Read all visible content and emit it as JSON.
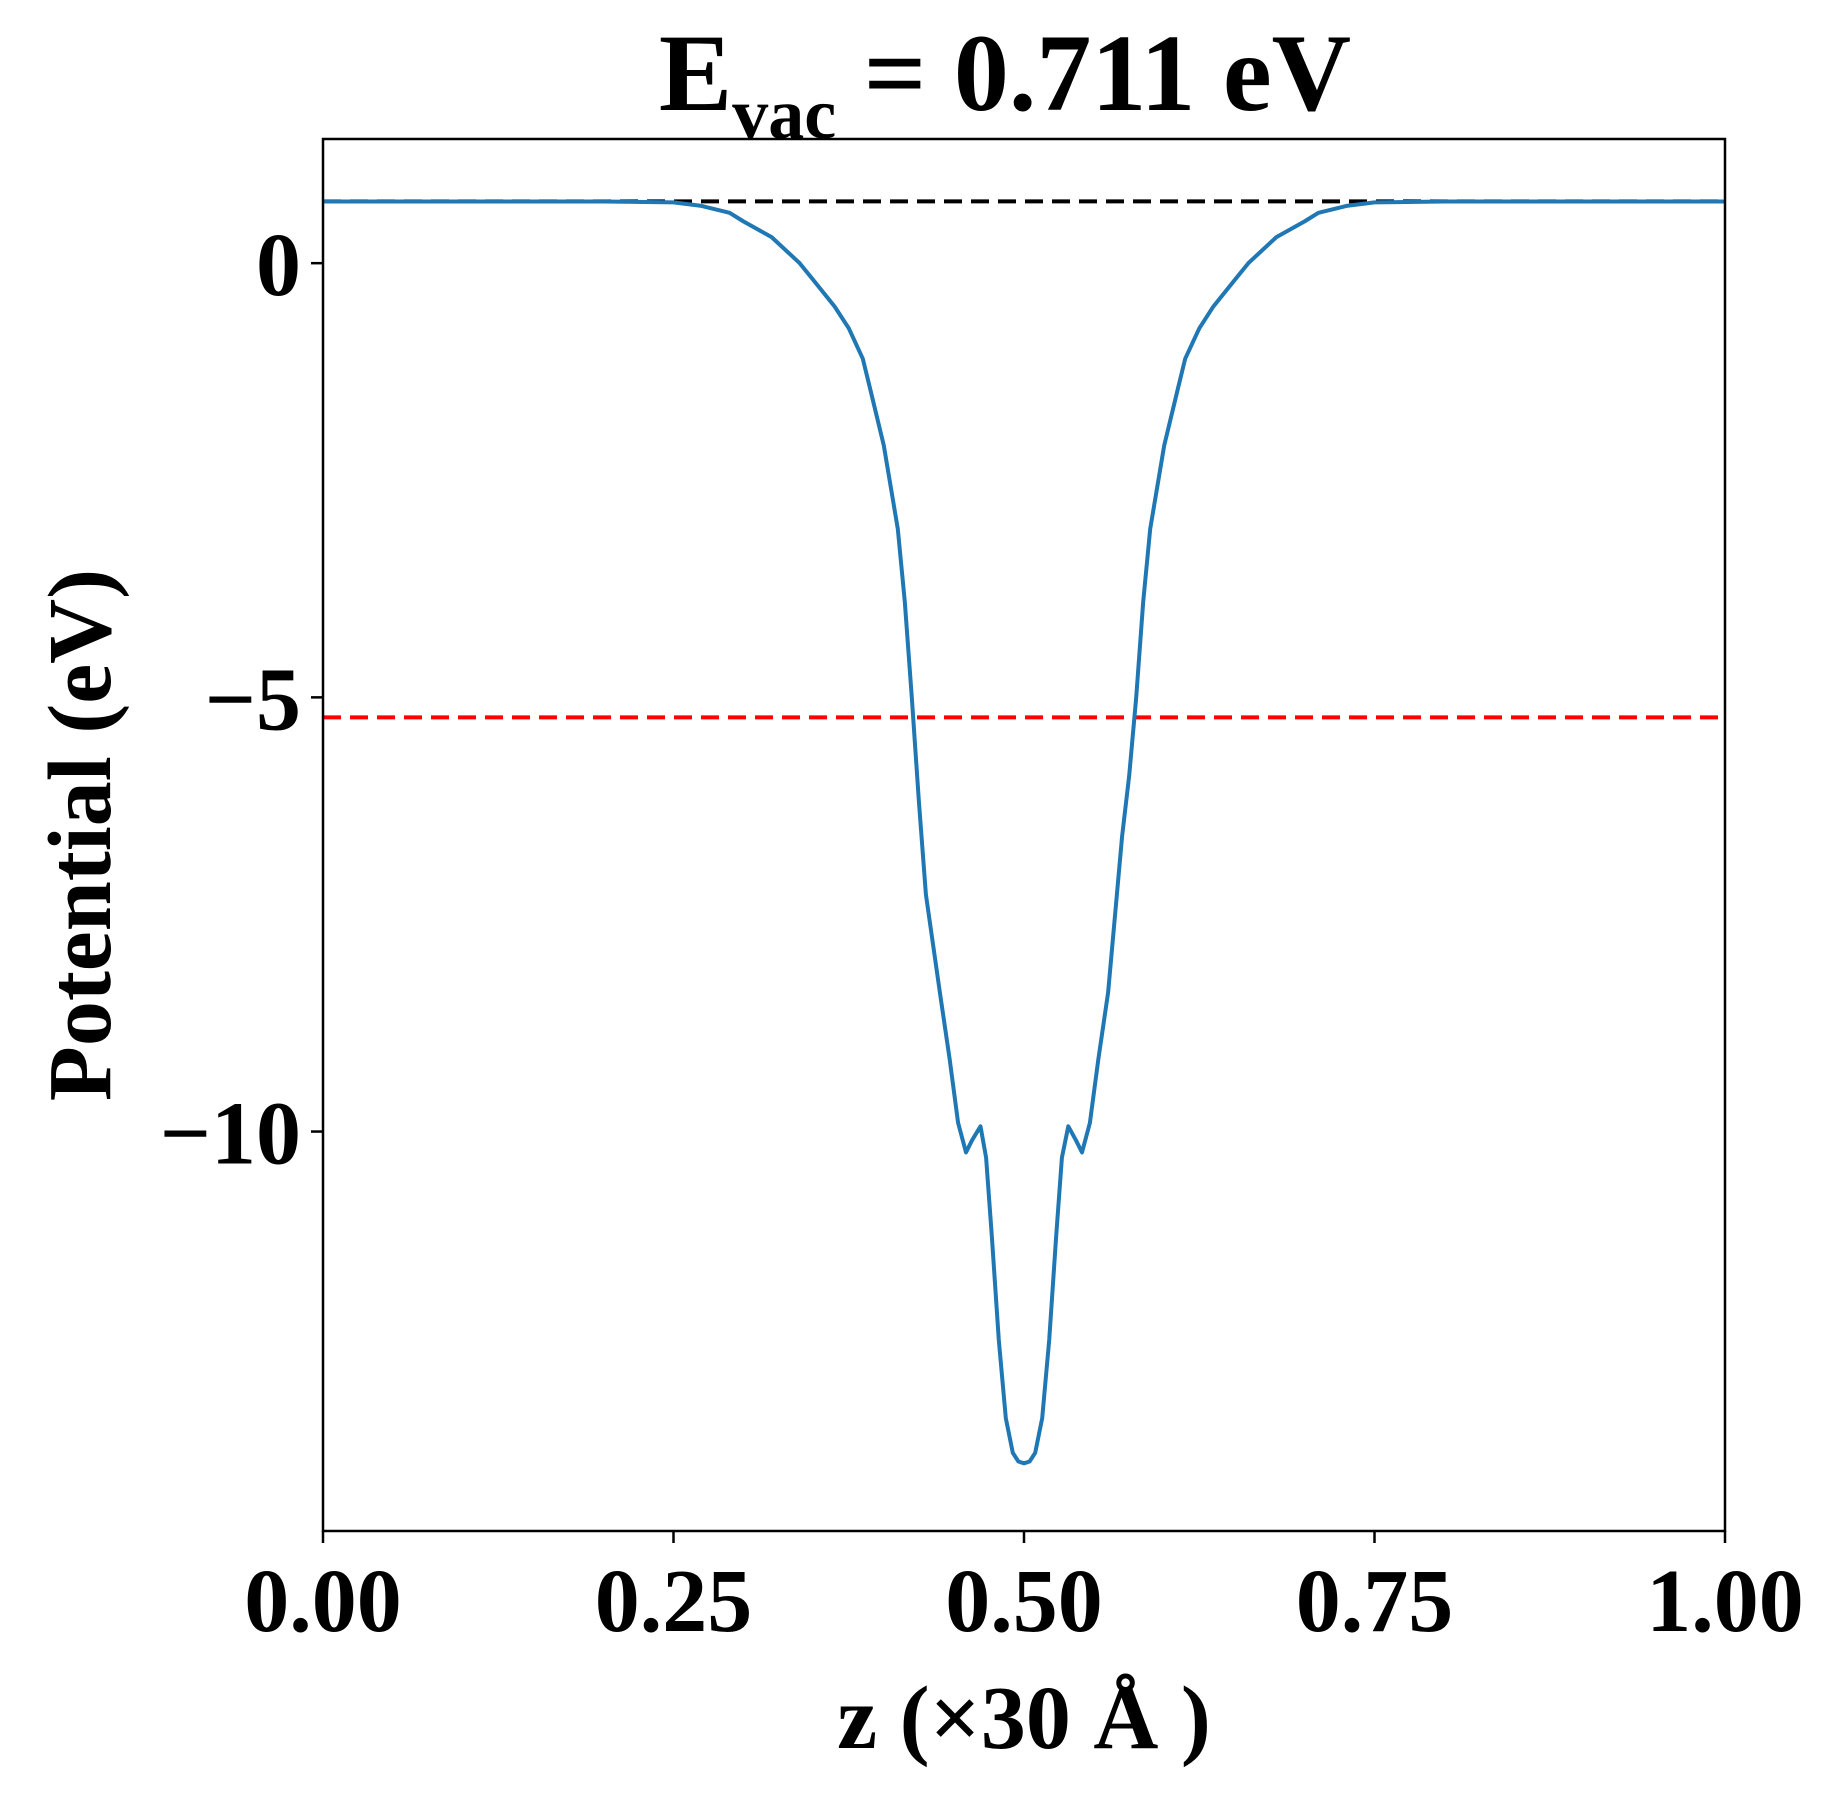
{
  "chart_data": {
    "type": "line",
    "title": {
      "main": "E",
      "subscript": "vac",
      "rest": " = 0.711 eV"
    },
    "xlabel": "z (×30 Å )",
    "ylabel": "Potential (eV)",
    "xlim": [
      0,
      1
    ],
    "ylim": [
      -14.6,
      1.43
    ],
    "xticks": [
      0,
      0.25,
      0.5,
      0.75,
      1.0
    ],
    "xtick_labels": [
      "0.00",
      "0.25",
      "0.50",
      "0.75",
      "1.00"
    ],
    "yticks": [
      0,
      -5,
      -10
    ],
    "ytick_labels": [
      "0",
      "−5",
      "−10"
    ],
    "grid": false,
    "colors": {
      "series": "#1f77b4",
      "vacuum_line": "#000000",
      "reference_line": "#ff0000"
    },
    "hlines": [
      {
        "y": 0.711,
        "style": "dashed",
        "color": "#000000"
      },
      {
        "y": -5.23,
        "style": "dashed",
        "color": "#ff0000"
      }
    ],
    "series": [
      {
        "x": [
          0,
          0.05,
          0.1,
          0.15,
          0.2,
          0.25,
          0.27,
          0.29,
          0.3,
          0.32,
          0.34,
          0.35,
          0.365,
          0.375,
          0.385,
          0.39,
          0.4,
          0.41,
          0.415,
          0.42,
          0.425,
          0.43,
          0.44,
          0.447,
          0.453,
          0.4586,
          0.463,
          0.469,
          0.473,
          0.477,
          0.482,
          0.487,
          0.492,
          0.496,
          0.5,
          0.504,
          0.508,
          0.513,
          0.518,
          0.523,
          0.527,
          0.5316,
          0.537,
          0.5414,
          0.547,
          0.553,
          0.56,
          0.57,
          0.575,
          0.58,
          0.585,
          0.59,
          0.6,
          0.61,
          0.615,
          0.625,
          0.635,
          0.65,
          0.66,
          0.68,
          0.7,
          0.71,
          0.73,
          0.75,
          0.8,
          0.85,
          0.9,
          0.95,
          1.0
        ],
        "y": [
          0.71,
          0.71,
          0.71,
          0.71,
          0.71,
          0.7,
          0.66,
          0.58,
          0.48,
          0.3,
          0.0,
          -0.2,
          -0.5,
          -0.75,
          -1.1,
          -1.43,
          -2.1,
          -3.06,
          -3.9,
          -5.0,
          -6.2,
          -7.27,
          -8.4,
          -9.17,
          -9.9,
          -10.24,
          -10.1,
          -9.94,
          -10.3,
          -11.2,
          -12.4,
          -13.3,
          -13.7,
          -13.8,
          -13.82,
          -13.8,
          -13.7,
          -13.3,
          -12.4,
          -11.2,
          -10.3,
          -9.94,
          -10.1,
          -10.24,
          -9.9,
          -9.17,
          -8.4,
          -6.6,
          -5.9,
          -5.0,
          -3.9,
          -3.06,
          -2.1,
          -1.43,
          -1.1,
          -0.75,
          -0.5,
          -0.2,
          0.0,
          0.3,
          0.48,
          0.58,
          0.66,
          0.7,
          0.71,
          0.71,
          0.71,
          0.71,
          0.71
        ]
      }
    ]
  }
}
